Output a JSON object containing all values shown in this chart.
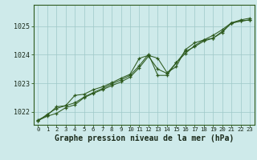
{
  "title": "Graphe pression niveau de la mer (hPa)",
  "background_color": "#ceeaea",
  "plot_bg_color": "#ceeaea",
  "grid_color": "#9ec8c8",
  "line_color": "#2d5a1e",
  "marker_color": "#2d5a1e",
  "border_color": "#2d5a1e",
  "xlim": [
    -0.5,
    23.5
  ],
  "ylim": [
    1021.55,
    1025.75
  ],
  "yticks": [
    1022,
    1023,
    1024,
    1025
  ],
  "xticks": [
    0,
    1,
    2,
    3,
    4,
    5,
    6,
    7,
    8,
    9,
    10,
    11,
    12,
    13,
    14,
    15,
    16,
    17,
    18,
    19,
    20,
    21,
    22,
    23
  ],
  "series": [
    [
      1021.7,
      1021.85,
      1021.95,
      1022.15,
      1022.25,
      1022.5,
      1022.65,
      1022.78,
      1022.92,
      1023.05,
      1023.22,
      1023.55,
      1023.95,
      1023.5,
      1023.35,
      1023.72,
      1024.05,
      1024.32,
      1024.52,
      1024.58,
      1024.82,
      1025.1,
      1025.18,
      1025.22
    ],
    [
      1021.72,
      1021.88,
      1022.18,
      1022.22,
      1022.58,
      1022.62,
      1022.78,
      1022.88,
      1023.02,
      1023.18,
      1023.32,
      1023.88,
      1023.98,
      1023.88,
      1023.38,
      1023.58,
      1024.18,
      1024.42,
      1024.52,
      1024.68,
      1024.88,
      1025.12,
      1025.22,
      1025.28
    ],
    [
      1021.68,
      1021.92,
      1022.12,
      1022.22,
      1022.32,
      1022.52,
      1022.68,
      1022.82,
      1022.98,
      1023.12,
      1023.28,
      1023.62,
      1024.02,
      1023.28,
      1023.28,
      1023.72,
      1024.12,
      1024.28,
      1024.48,
      1024.58,
      1024.78,
      1025.12,
      1025.18,
      1025.22
    ]
  ],
  "xlabel_fontsize": 7.0,
  "ylabel_fontsize": 6.5,
  "xtick_fontsize": 5.2,
  "ytick_fontsize": 6.0
}
